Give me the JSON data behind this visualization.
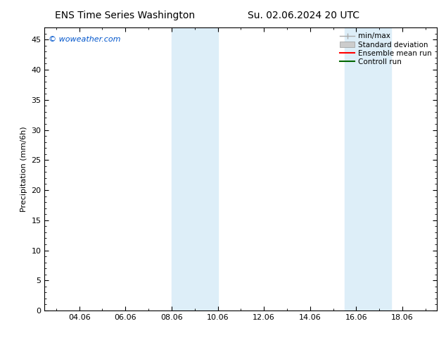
{
  "title_left": "ENS Time Series Washington",
  "title_right": "Su. 02.06.2024 20 UTC",
  "ylabel": "Precipitation (mm/6h)",
  "watermark": "© woweather.com",
  "watermark_color": "#0055cc",
  "xlim_start": 2.5,
  "xlim_end": 19.5,
  "ylim": [
    0,
    47
  ],
  "yticks": [
    0,
    5,
    10,
    15,
    20,
    25,
    30,
    35,
    40,
    45
  ],
  "xtick_labels": [
    "04.06",
    "06.06",
    "08.06",
    "10.06",
    "12.06",
    "14.06",
    "16.06",
    "18.06"
  ],
  "xtick_positions": [
    4,
    6,
    8,
    10,
    12,
    14,
    16,
    18
  ],
  "shaded_bands": [
    {
      "x_start": 8.0,
      "x_end": 10.0,
      "color": "#ddeef8"
    },
    {
      "x_start": 15.5,
      "x_end": 17.5,
      "color": "#ddeef8"
    }
  ],
  "legend_items": [
    {
      "label": "min/max",
      "color": "#aaaaaa",
      "lw": 1.0,
      "style": "line_with_cap"
    },
    {
      "label": "Standard deviation",
      "color": "#cccccc",
      "lw": 6,
      "style": "band"
    },
    {
      "label": "Ensemble mean run",
      "color": "#ff0000",
      "lw": 1.5,
      "style": "line"
    },
    {
      "label": "Controll run",
      "color": "#006600",
      "lw": 1.5,
      "style": "line"
    }
  ],
  "background_color": "#ffffff",
  "plot_bg_color": "#ffffff",
  "title_fontsize": 10,
  "tick_fontsize": 8,
  "ylabel_fontsize": 8,
  "legend_fontsize": 7.5,
  "watermark_fontsize": 8
}
